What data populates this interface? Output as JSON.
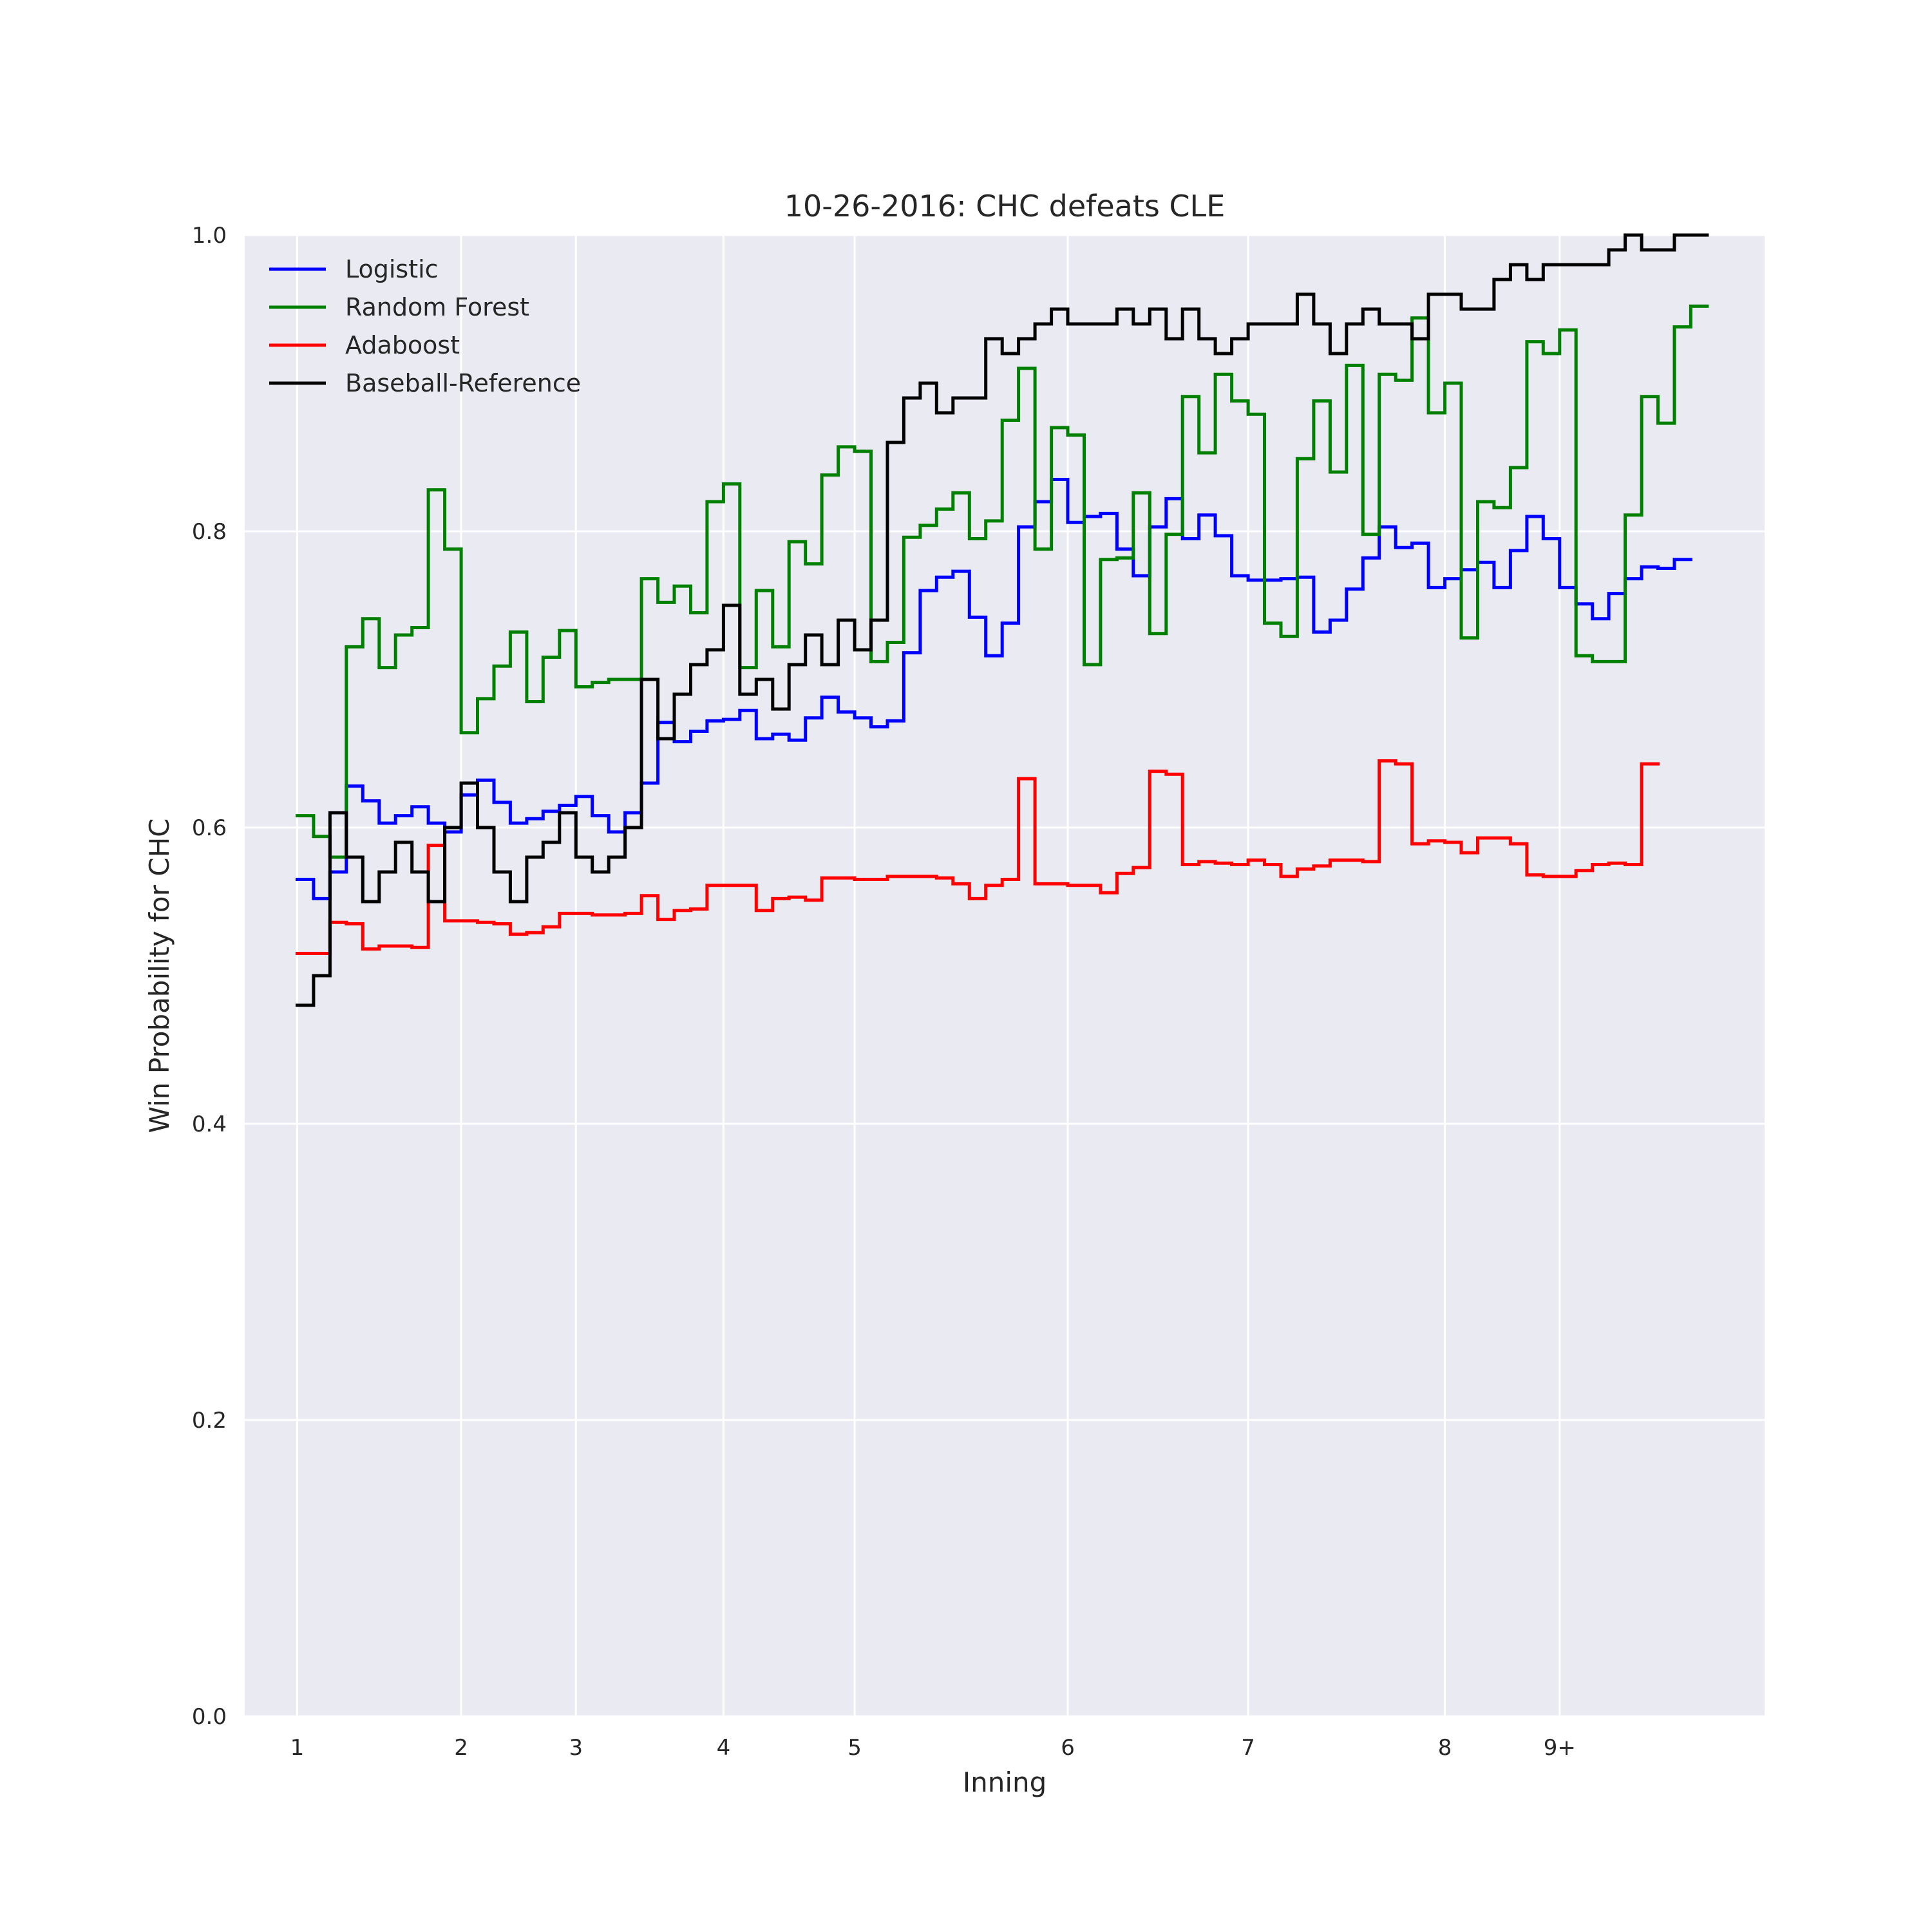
{
  "chart_data": {
    "type": "line",
    "title": "10-26-2016: CHC defeats CLE",
    "xlabel": "Inning",
    "ylabel": "Win Probability for CHC",
    "ylim": [
      0.0,
      1.0
    ],
    "yticks": [
      0.0,
      0.2,
      0.4,
      0.6,
      0.8,
      1.0
    ],
    "ytick_labels": [
      "0.0",
      "0.2",
      "0.4",
      "0.6",
      "0.8",
      "1.0"
    ],
    "xticks": [
      {
        "at": 0,
        "label": "1"
      },
      {
        "at": 10,
        "label": "2"
      },
      {
        "at": 17,
        "label": "3"
      },
      {
        "at": 26,
        "label": "4"
      },
      {
        "at": 34,
        "label": "5"
      },
      {
        "at": 47,
        "label": "6"
      },
      {
        "at": 58,
        "label": "7"
      },
      {
        "at": 70,
        "label": "8"
      },
      {
        "at": 77,
        "label": "9+"
      }
    ],
    "xlim": [
      -3.2,
      89.5
    ],
    "grid": true,
    "legend_position": "top-left",
    "step": true,
    "series": [
      {
        "name": "Logistic",
        "color": "#0000ff",
        "values": [
          0.565,
          0.552,
          0.57,
          0.628,
          0.618,
          0.603,
          0.608,
          0.614,
          0.603,
          0.597,
          0.622,
          0.632,
          0.617,
          0.603,
          0.606,
          0.611,
          0.615,
          0.621,
          0.608,
          0.597,
          0.61,
          0.63,
          0.671,
          0.658,
          0.665,
          0.672,
          0.673,
          0.679,
          0.66,
          0.663,
          0.659,
          0.674,
          0.688,
          0.678,
          0.674,
          0.668,
          0.672,
          0.718,
          0.76,
          0.769,
          0.773,
          0.742,
          0.716,
          0.738,
          0.803,
          0.82,
          0.835,
          0.806,
          0.81,
          0.812,
          0.788,
          0.77,
          0.803,
          0.822,
          0.795,
          0.811,
          0.797,
          0.77,
          0.767,
          0.767,
          0.768,
          0.769,
          0.732,
          0.74,
          0.761,
          0.782,
          0.803,
          0.789,
          0.792,
          0.762,
          0.768,
          0.774,
          0.779,
          0.762,
          0.787,
          0.81,
          0.795,
          0.762,
          0.751,
          0.741,
          0.758,
          0.768,
          0.776,
          0.775,
          0.781
        ]
      },
      {
        "name": "Random Forest",
        "color": "#008000",
        "values": [
          0.608,
          0.594,
          0.58,
          0.722,
          0.741,
          0.708,
          0.73,
          0.735,
          0.828,
          0.788,
          0.664,
          0.687,
          0.709,
          0.732,
          0.685,
          0.715,
          0.733,
          0.695,
          0.698,
          0.7,
          0.7,
          0.768,
          0.752,
          0.763,
          0.745,
          0.82,
          0.832,
          0.708,
          0.76,
          0.722,
          0.793,
          0.778,
          0.838,
          0.857,
          0.854,
          0.712,
          0.725,
          0.796,
          0.804,
          0.815,
          0.826,
          0.795,
          0.807,
          0.875,
          0.91,
          0.788,
          0.87,
          0.865,
          0.71,
          0.781,
          0.782,
          0.826,
          0.731,
          0.798,
          0.891,
          0.853,
          0.906,
          0.888,
          0.879,
          0.738,
          0.729,
          0.849,
          0.888,
          0.84,
          0.912,
          0.798,
          0.906,
          0.902,
          0.944,
          0.88,
          0.9,
          0.728,
          0.82,
          0.816,
          0.843,
          0.928,
          0.92,
          0.936,
          0.716,
          0.712,
          0.712,
          0.811,
          0.891,
          0.873,
          0.938,
          0.952
        ]
      },
      {
        "name": "Adaboost",
        "color": "#ff0000",
        "values": [
          0.515,
          0.515,
          0.536,
          0.535,
          0.518,
          0.52,
          0.52,
          0.519,
          0.588,
          0.537,
          0.537,
          0.536,
          0.535,
          0.528,
          0.529,
          0.533,
          0.542,
          0.542,
          0.541,
          0.541,
          0.542,
          0.554,
          0.538,
          0.544,
          0.545,
          0.561,
          0.561,
          0.561,
          0.544,
          0.552,
          0.553,
          0.551,
          0.566,
          0.566,
          0.565,
          0.565,
          0.567,
          0.567,
          0.567,
          0.566,
          0.562,
          0.552,
          0.561,
          0.565,
          0.633,
          0.562,
          0.562,
          0.561,
          0.561,
          0.556,
          0.569,
          0.573,
          0.638,
          0.636,
          0.575,
          0.577,
          0.576,
          0.575,
          0.578,
          0.575,
          0.567,
          0.572,
          0.574,
          0.578,
          0.578,
          0.577,
          0.645,
          0.643,
          0.589,
          0.591,
          0.59,
          0.583,
          0.593,
          0.593,
          0.589,
          0.568,
          0.567,
          0.567,
          0.571,
          0.575,
          0.576,
          0.575,
          0.643
        ]
      },
      {
        "name": "Baseball-Reference",
        "color": "#000000",
        "values": [
          0.48,
          0.5,
          0.61,
          0.58,
          0.55,
          0.57,
          0.59,
          0.57,
          0.55,
          0.6,
          0.63,
          0.6,
          0.57,
          0.55,
          0.58,
          0.59,
          0.61,
          0.58,
          0.57,
          0.58,
          0.6,
          0.7,
          0.66,
          0.69,
          0.71,
          0.72,
          0.75,
          0.69,
          0.7,
          0.68,
          0.71,
          0.73,
          0.71,
          0.74,
          0.72,
          0.74,
          0.86,
          0.89,
          0.9,
          0.88,
          0.89,
          0.89,
          0.93,
          0.92,
          0.93,
          0.94,
          0.95,
          0.94,
          0.94,
          0.94,
          0.95,
          0.94,
          0.95,
          0.93,
          0.95,
          0.93,
          0.92,
          0.93,
          0.94,
          0.94,
          0.94,
          0.96,
          0.94,
          0.92,
          0.94,
          0.95,
          0.94,
          0.94,
          0.93,
          0.96,
          0.96,
          0.95,
          0.95,
          0.97,
          0.98,
          0.97,
          0.98,
          0.98,
          0.98,
          0.98,
          0.99,
          1.0,
          0.99,
          0.99,
          1.0,
          1.0
        ]
      }
    ]
  }
}
